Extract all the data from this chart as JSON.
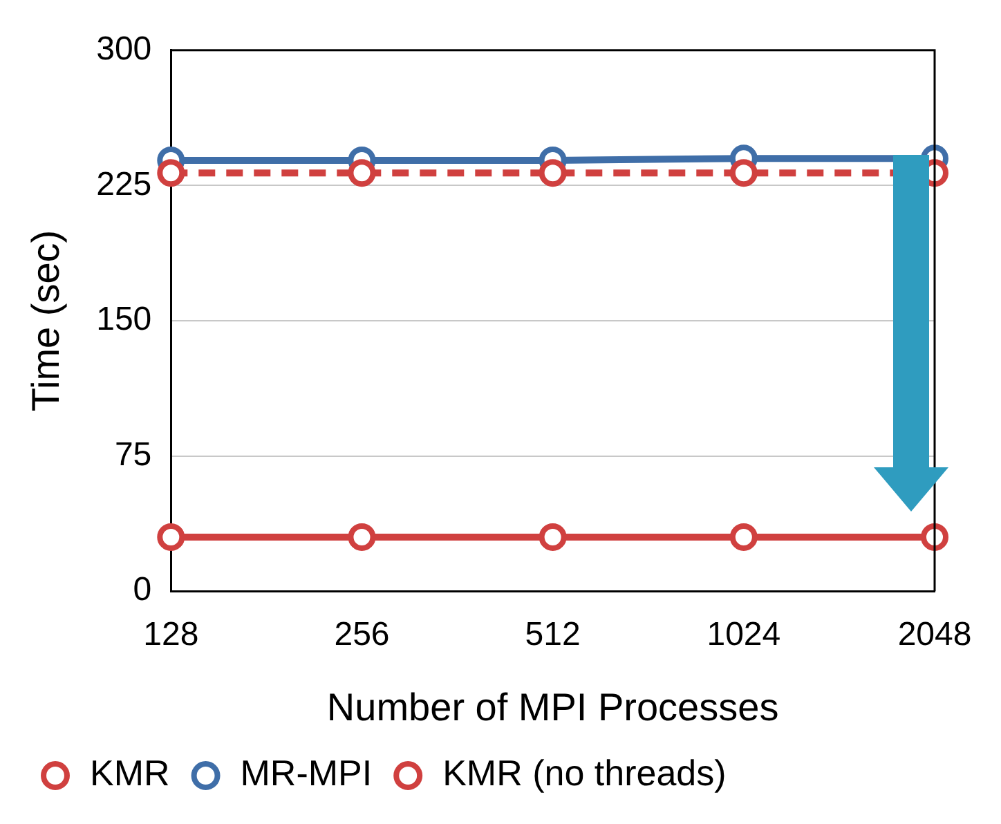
{
  "chart_data": {
    "type": "line",
    "xlabel": "Number of MPI Processes",
    "ylabel": "Time (sec)",
    "categories": [
      "128",
      "256",
      "512",
      "1024",
      "2048"
    ],
    "series": [
      {
        "name": "KMR",
        "color": "#d0403f",
        "values": [
          30,
          30,
          30,
          30,
          30
        ],
        "line_style": "solid"
      },
      {
        "name": "MR-MPI",
        "color": "#3f6ea8",
        "values": [
          239,
          239,
          239,
          240,
          240
        ],
        "line_style": "solid"
      },
      {
        "name": "KMR (no threads)",
        "color": "#d0403f",
        "values": [
          232,
          232,
          232,
          232,
          232
        ],
        "line_style": "dashed"
      }
    ],
    "ylim": [
      0,
      300
    ],
    "yticks": [
      0,
      75,
      150,
      225,
      300
    ],
    "grid": "y",
    "legend": "bottom",
    "marker": "circle"
  }
}
